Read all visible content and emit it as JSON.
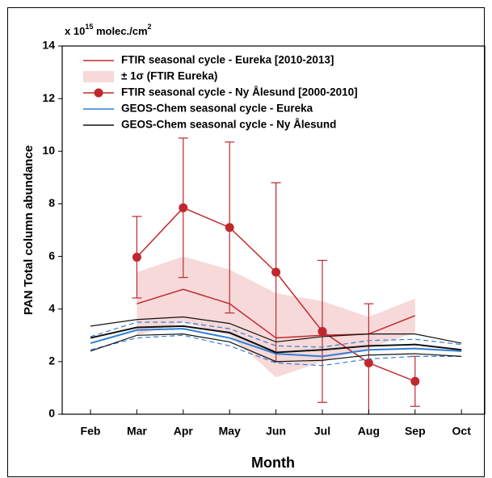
{
  "chart_data": {
    "type": "line",
    "y_unit": {
      "prefix": "x 10",
      "exp": "15",
      "unit": " molec./cm",
      "unit_exp": "2"
    },
    "y_label": "PAN Total column abundance",
    "x_label": "Month",
    "categories": [
      "Feb",
      "Mar",
      "Apr",
      "May",
      "Jun",
      "Jul",
      "Aug",
      "Sep",
      "Oct"
    ],
    "ylim": [
      0,
      14
    ],
    "yticks": [
      0,
      2,
      4,
      6,
      8,
      10,
      12,
      14
    ],
    "band": {
      "name": "± 1σ (FTIR Eureka)",
      "color": "#f7d9d9",
      "upper": [
        null,
        5.4,
        6.0,
        5.5,
        4.6,
        4.3,
        3.7,
        4.4,
        null
      ],
      "lower": [
        null,
        3.0,
        3.5,
        3.0,
        1.4,
        2.0,
        2.5,
        3.1,
        null
      ]
    },
    "series": [
      {
        "name": "FTIR seasonal cycle - Eureka [2010-2013]",
        "color": "#c0282d",
        "style": "line",
        "values": [
          null,
          4.2,
          4.75,
          4.2,
          2.9,
          3.0,
          3.05,
          3.75,
          null
        ]
      },
      {
        "name": "FTIR seasonal cycle - Ny Ålesund [2000-2010]",
        "color": "#c0282d",
        "style": "markers",
        "values": [
          null,
          5.97,
          7.85,
          7.1,
          5.4,
          3.15,
          1.95,
          1.25,
          null
        ],
        "errors": [
          null,
          1.55,
          2.65,
          3.25,
          3.4,
          2.7,
          2.25,
          0.95,
          null
        ]
      },
      {
        "name": "GEOS-Chem seasonal cycle - Eureka",
        "color": "#2f7fd6",
        "style": "line",
        "spread_dash": true,
        "values": [
          2.7,
          3.2,
          3.25,
          2.9,
          2.3,
          2.2,
          2.45,
          2.5,
          2.4
        ],
        "upper": [
          2.95,
          3.5,
          3.5,
          3.25,
          2.6,
          2.55,
          2.8,
          2.85,
          2.65
        ],
        "lower": [
          2.45,
          2.9,
          3.0,
          2.6,
          1.95,
          1.85,
          2.1,
          2.2,
          2.2
        ]
      },
      {
        "name": "GEOS-Chem seasonal cycle - Ny Ålesund",
        "color": "#111111",
        "style": "line",
        "spread_dash": false,
        "values": [
          2.9,
          3.3,
          3.35,
          3.1,
          2.35,
          2.45,
          2.6,
          2.65,
          2.45
        ],
        "upper": [
          3.35,
          3.6,
          3.7,
          3.45,
          2.75,
          2.95,
          3.05,
          3.05,
          2.7
        ],
        "lower": [
          2.4,
          3.0,
          3.05,
          2.75,
          2.0,
          2.05,
          2.25,
          2.3,
          2.2
        ]
      }
    ]
  }
}
